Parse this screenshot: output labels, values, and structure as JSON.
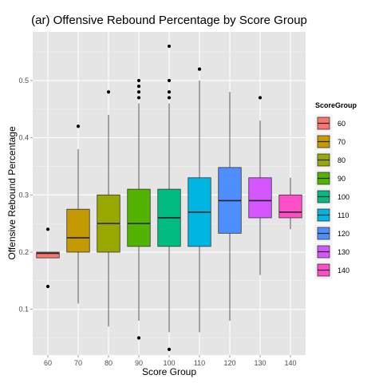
{
  "chart_data": {
    "type": "box",
    "title": "(ar) Offensive Rebound Percentage by Score Group",
    "xlabel": "Score Group",
    "ylabel": "Offensive Rebound Percentage",
    "ylim": [
      0.02,
      0.585
    ],
    "y_ticks": [
      0.1,
      0.2,
      0.3,
      0.4,
      0.5
    ],
    "y_tick_labels": [
      "0.1",
      "0.2",
      "0.3",
      "0.4",
      "0.5"
    ],
    "categories": [
      "60",
      "70",
      "80",
      "90",
      "100",
      "110",
      "120",
      "130",
      "140"
    ],
    "legend": {
      "title": "ScoreGroup",
      "position": "right",
      "entries": [
        "60",
        "70",
        "80",
        "90",
        "100",
        "110",
        "120",
        "130",
        "140"
      ]
    },
    "grid": true,
    "colors": [
      "#F8766D",
      "#C49A00",
      "#99A800",
      "#53B400",
      "#00BC80",
      "#00B5E2",
      "#4F8EFF",
      "#D356FF",
      "#FF4DC7"
    ],
    "boxes": [
      {
        "group": "60",
        "whisker_low": 0.19,
        "q1": 0.19,
        "median": 0.198,
        "q3": 0.2,
        "whisker_high": 0.2,
        "outliers": [
          0.14,
          0.24
        ]
      },
      {
        "group": "70",
        "whisker_low": 0.11,
        "q1": 0.2,
        "median": 0.225,
        "q3": 0.275,
        "whisker_high": 0.38,
        "outliers": [
          0.42
        ]
      },
      {
        "group": "80",
        "whisker_low": 0.07,
        "q1": 0.2,
        "median": 0.25,
        "q3": 0.3,
        "whisker_high": 0.44,
        "outliers": [
          0.48
        ]
      },
      {
        "group": "90",
        "whisker_low": 0.08,
        "q1": 0.21,
        "median": 0.25,
        "q3": 0.31,
        "whisker_high": 0.46,
        "outliers": [
          0.05,
          0.47,
          0.48,
          0.49,
          0.5
        ]
      },
      {
        "group": "100",
        "whisker_low": 0.06,
        "q1": 0.21,
        "median": 0.26,
        "q3": 0.31,
        "whisker_high": 0.46,
        "outliers": [
          0.03,
          0.47,
          0.48,
          0.5,
          0.56
        ]
      },
      {
        "group": "110",
        "whisker_low": 0.06,
        "q1": 0.21,
        "median": 0.27,
        "q3": 0.33,
        "whisker_high": 0.5,
        "outliers": [
          0.52
        ]
      },
      {
        "group": "120",
        "whisker_low": 0.08,
        "q1": 0.233,
        "median": 0.29,
        "q3": 0.348,
        "whisker_high": 0.48,
        "outliers": []
      },
      {
        "group": "130",
        "whisker_low": 0.16,
        "q1": 0.26,
        "median": 0.29,
        "q3": 0.33,
        "whisker_high": 0.43,
        "outliers": [
          0.47
        ]
      },
      {
        "group": "140",
        "whisker_low": 0.24,
        "q1": 0.26,
        "median": 0.27,
        "q3": 0.3,
        "whisker_high": 0.33,
        "outliers": []
      }
    ]
  }
}
